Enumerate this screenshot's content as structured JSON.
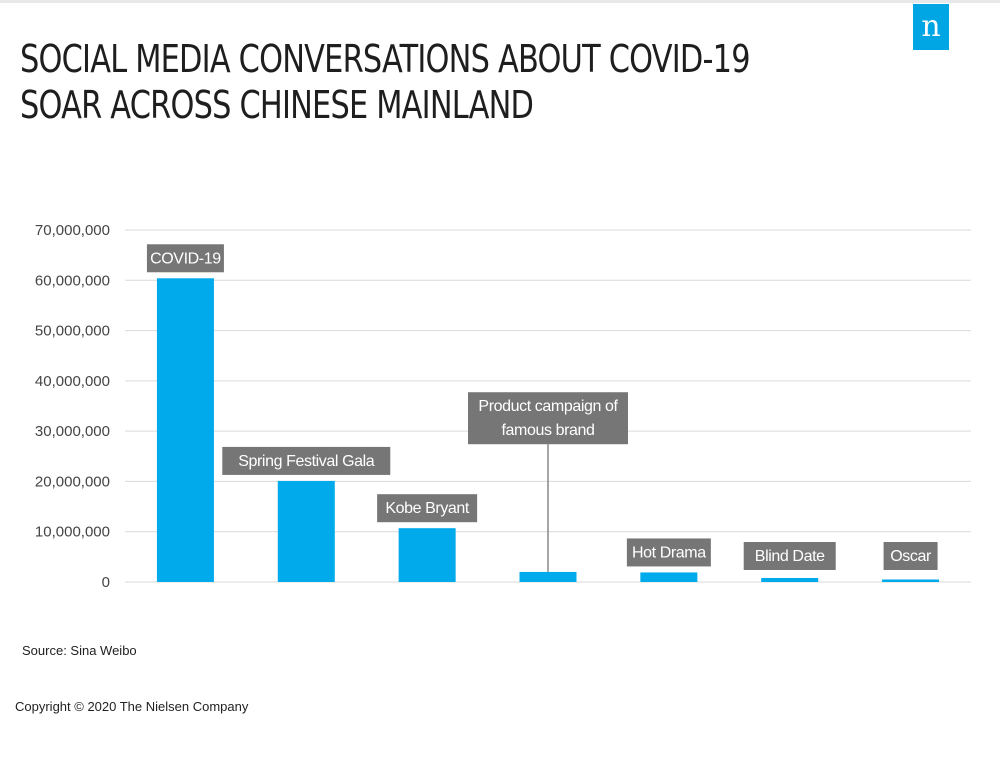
{
  "title_lines": [
    "SOCIAL MEDIA CONVERSATIONS ABOUT COVID-19",
    "SOAR ACROSS CHINESE MAINLAND"
  ],
  "logo_letter": "n",
  "source": "Source: Sina Weibo",
  "copyright": "Copyright © 2020 The Nielsen Company",
  "colors": {
    "bar": "#00aaeb",
    "label_bg": "#767676",
    "label_text": "#ffffff",
    "grid": "#d9d9d9",
    "tick_text": "#444444",
    "brand": "#00a6e3"
  },
  "chart_data": {
    "type": "bar",
    "categories": [
      "COVID-19",
      "Spring Festival Gala",
      "Kobe Bryant",
      "Product campaign of famous brand",
      "Hot Drama",
      "Blind Date",
      "Oscar"
    ],
    "values": [
      60400000,
      20100000,
      10700000,
      2000000,
      1900000,
      800000,
      500000
    ],
    "bar_labels": [
      [
        "COVID-19"
      ],
      [
        "Spring Festival Gala"
      ],
      [
        "Kobe Bryant"
      ],
      [
        "Product campaign of",
        "famous brand"
      ],
      [
        "Hot Drama"
      ],
      [
        "Blind Date"
      ],
      [
        "Oscar"
      ]
    ],
    "ylim": [
      0,
      70000000
    ],
    "yticks": [
      0,
      10000000,
      20000000,
      30000000,
      40000000,
      50000000,
      60000000,
      70000000
    ],
    "ytick_labels": [
      "0",
      "10,000,000",
      "20,000,000",
      "30,000,000",
      "40,000,000",
      "50,000,000",
      "60,000,000",
      "70,000,000"
    ],
    "grid": true
  }
}
